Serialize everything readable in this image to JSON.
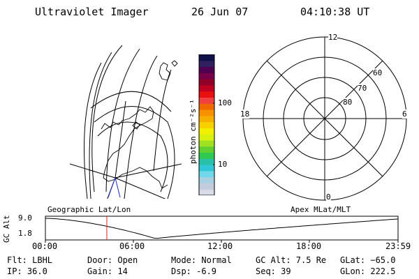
{
  "header": {
    "instrument": "Ultraviolet Imager",
    "date": "26 Jun 07",
    "time": "04:10:38 UT"
  },
  "colorbar": {
    "unit": "photon cm⁻²s⁻¹",
    "tick_100": "100",
    "tick_10": "10",
    "colors": [
      "#d8dce6",
      "#c2ccdc",
      "#a8d0e0",
      "#70d8e8",
      "#30c8d8",
      "#28c0a8",
      "#30c850",
      "#60d030",
      "#a0e020",
      "#d8f010",
      "#f0f000",
      "#f8d000",
      "#f8b000",
      "#f89000",
      "#f06800",
      "#f04040",
      "#e81010",
      "#c00020",
      "#900028",
      "#780048",
      "#500050",
      "#302060",
      "#101048"
    ]
  },
  "polar": {
    "label_mlt_12": "12",
    "label_mlt_18": "18",
    "label_mlt_6": "6",
    "label_mlt_0": "0",
    "label_lat_60": "60",
    "label_lat_70": "70",
    "label_lat_80": "80"
  },
  "altitude_plot": {
    "y_axis_label": "GC Alt",
    "y_top": "9.0",
    "y_bottom": "1.8",
    "left_label": "Geographic Lat/Lon",
    "right_label": "Apex MLat/MLT",
    "x_ticks": [
      "00:00",
      "06:00",
      "12:00",
      "18:00",
      "23:59"
    ],
    "current_time_hours": 4.18,
    "marker_color": "#e02020"
  },
  "footer": {
    "flt": "Flt: LBHL",
    "ip": "IP: 36.0",
    "door": "Door: Open",
    "gain": "Gain: 14",
    "mode": "Mode: Normal",
    "dsp": "Dsp:    -6.9",
    "gc_alt": "GC Alt: 7.5 Re",
    "seq": "Seq: 39",
    "glat": "GLat: −65.0",
    "glon": "GLon: 222.5"
  }
}
